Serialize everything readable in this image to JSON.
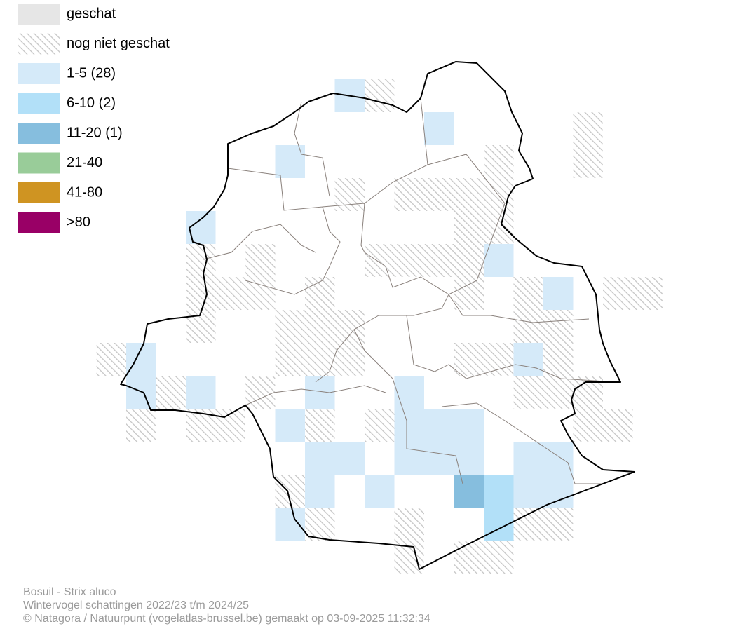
{
  "legend": [
    {
      "label": "geschat",
      "color": "#e6e6e6"
    },
    {
      "label": "nog niet geschat"
    },
    {
      "label": "1-5 (28)",
      "color": "#d5eaf9"
    },
    {
      "label": "6-10 (2)",
      "color": "#b2e0f8"
    },
    {
      "label": "11-20 (1)",
      "color": "#86bede"
    },
    {
      "label": "21-40",
      "color": "#99cc99"
    },
    {
      "label": "41-80",
      "color": "#cf9422"
    },
    {
      "label": ">80",
      "color": "#990066"
    }
  ],
  "footer": {
    "species": "Bosuil - Strix aluco",
    "subtitle": "Wintervogel schattingen 2022/23 t/m 2024/25",
    "credit": "© Natagora / Natuurpunt (vogelatlas-brussel.be) gemaakt op 03-09-2025 11:32:34"
  }
}
